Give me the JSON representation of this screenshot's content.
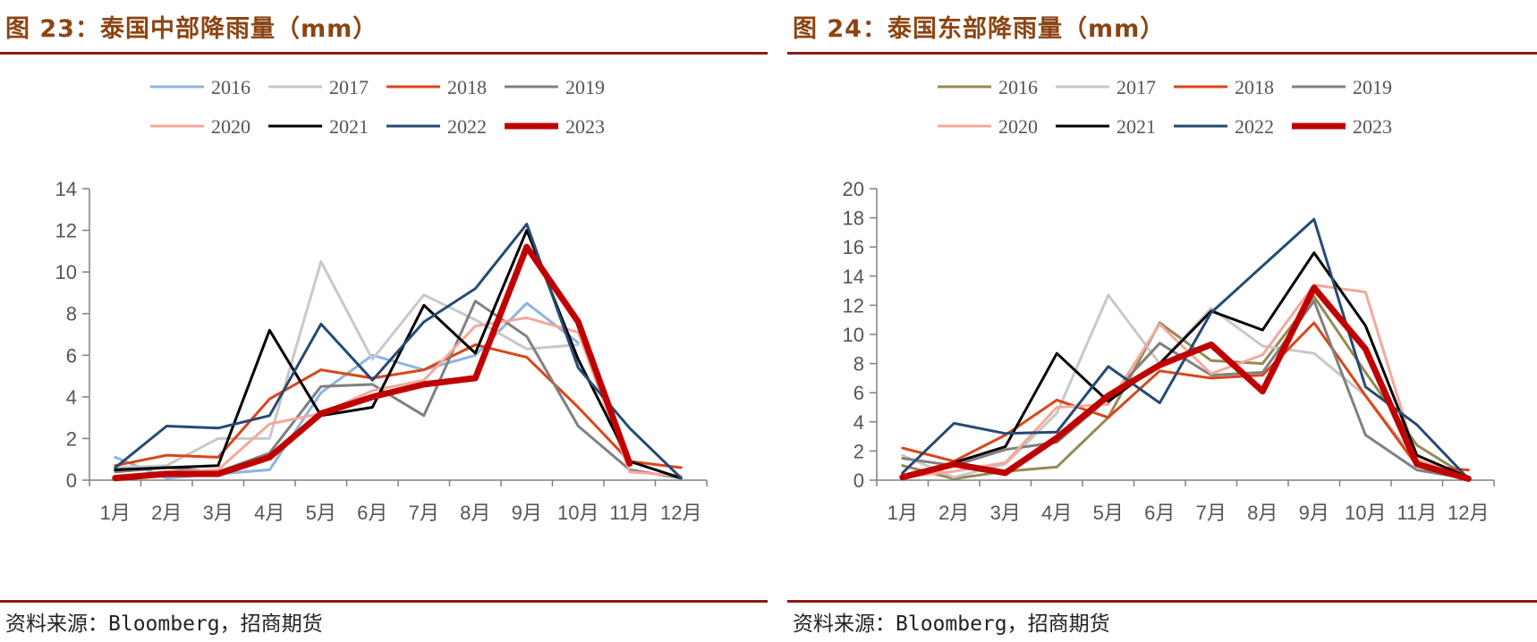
{
  "source": "资料来源：Bloomberg，招商期货",
  "chart_data": [
    {
      "type": "line",
      "title": "图 23：泰国中部降雨量（mm）",
      "categories": [
        "1月",
        "2月",
        "3月",
        "4月",
        "5月",
        "6月",
        "7月",
        "8月",
        "9月",
        "10月",
        "11月",
        "12月"
      ],
      "ylim": [
        0,
        14
      ],
      "yticks": [
        0,
        2,
        4,
        6,
        8,
        10,
        12,
        14
      ],
      "xlabel": "",
      "ylabel": "",
      "legend_position": "top",
      "series": [
        {
          "name": "2016",
          "color": "#8db4e2",
          "width": 3,
          "values": [
            1.1,
            0.1,
            0.3,
            0.5,
            4.2,
            6.0,
            5.3,
            6.0,
            8.5,
            6.6,
            null,
            null
          ]
        },
        {
          "name": "2017",
          "color": "#c8c8c8",
          "width": 3,
          "values": [
            0.6,
            0.7,
            2.0,
            2.0,
            10.5,
            5.8,
            8.9,
            7.7,
            6.3,
            6.5,
            null,
            null
          ]
        },
        {
          "name": "2018",
          "color": "#d9461b",
          "width": 3,
          "values": [
            0.7,
            1.2,
            1.1,
            3.9,
            5.3,
            4.9,
            5.3,
            6.5,
            5.9,
            3.5,
            0.9,
            0.6
          ]
        },
        {
          "name": "2019",
          "color": "#808080",
          "width": 3,
          "values": [
            0.4,
            0.6,
            0.4,
            1.3,
            4.5,
            4.6,
            3.1,
            8.6,
            6.9,
            2.6,
            0.5,
            0.1
          ]
        },
        {
          "name": "2020",
          "color": "#f4a89c",
          "width": 3,
          "values": [
            0.2,
            0.4,
            0.5,
            2.7,
            3.2,
            4.3,
            4.8,
            7.4,
            7.8,
            7.1,
            0.4,
            0.2
          ]
        },
        {
          "name": "2021",
          "color": "#000000",
          "width": 3,
          "values": [
            0.5,
            0.6,
            0.7,
            7.2,
            3.1,
            3.5,
            8.4,
            6.1,
            12.0,
            5.8,
            0.9,
            0.1
          ]
        },
        {
          "name": "2022",
          "color": "#264a73",
          "width": 3,
          "values": [
            0.6,
            2.6,
            2.5,
            3.1,
            7.5,
            4.8,
            7.6,
            9.2,
            12.3,
            5.4,
            2.5,
            0.1
          ]
        },
        {
          "name": "2023",
          "color": "#c00000",
          "width": 7,
          "values": [
            0.1,
            0.3,
            0.3,
            1.1,
            3.2,
            4.0,
            4.6,
            4.9,
            11.2,
            7.6,
            0.8,
            null
          ]
        }
      ]
    },
    {
      "type": "line",
      "title": "图 24：泰国东部降雨量（mm）",
      "categories": [
        "1月",
        "2月",
        "3月",
        "4月",
        "5月",
        "6月",
        "7月",
        "8月",
        "9月",
        "10月",
        "11月",
        "12月"
      ],
      "ylim": [
        0,
        20
      ],
      "yticks": [
        0,
        2,
        4,
        6,
        8,
        10,
        12,
        14,
        16,
        18,
        20
      ],
      "xlabel": "",
      "ylabel": "",
      "legend_position": "top",
      "series": [
        {
          "name": "2016",
          "color": "#948a54",
          "width": 3,
          "values": [
            1.0,
            0.1,
            0.6,
            0.9,
            4.3,
            10.8,
            8.2,
            8.0,
            12.6,
            7.4,
            2.4,
            0.2
          ]
        },
        {
          "name": "2017",
          "color": "#c8c8c8",
          "width": 3,
          "values": [
            1.7,
            0.2,
            1.1,
            4.6,
            12.7,
            8.0,
            11.8,
            9.2,
            8.7,
            5.8,
            1.3,
            0.2
          ]
        },
        {
          "name": "2018",
          "color": "#d9461b",
          "width": 3,
          "values": [
            2.2,
            1.3,
            3.1,
            5.5,
            4.3,
            7.5,
            7.0,
            7.2,
            10.8,
            5.8,
            1.0,
            0.7
          ]
        },
        {
          "name": "2019",
          "color": "#808080",
          "width": 3,
          "values": [
            1.5,
            1.0,
            2.1,
            2.6,
            5.6,
            9.4,
            7.2,
            7.4,
            12.3,
            3.1,
            0.7,
            0.1
          ]
        },
        {
          "name": "2020",
          "color": "#f4a89c",
          "width": 3,
          "values": [
            0.2,
            0.6,
            1.2,
            5.0,
            5.2,
            10.7,
            7.3,
            8.6,
            13.4,
            12.9,
            1.4,
            0.2
          ]
        },
        {
          "name": "2021",
          "color": "#000000",
          "width": 3,
          "values": [
            0.3,
            1.2,
            2.3,
            8.7,
            5.4,
            8.0,
            11.6,
            10.3,
            15.6,
            10.6,
            1.7,
            0.2
          ]
        },
        {
          "name": "2022",
          "color": "#264a73",
          "width": 3,
          "values": [
            0.5,
            3.9,
            3.2,
            3.3,
            7.8,
            5.3,
            11.5,
            14.7,
            17.9,
            6.4,
            3.8,
            0.1
          ]
        },
        {
          "name": "2023",
          "color": "#c00000",
          "width": 7,
          "values": [
            0.2,
            1.1,
            0.5,
            2.9,
            5.8,
            7.9,
            9.3,
            6.1,
            13.2,
            9.0,
            1.1,
            0.1
          ]
        }
      ]
    }
  ]
}
